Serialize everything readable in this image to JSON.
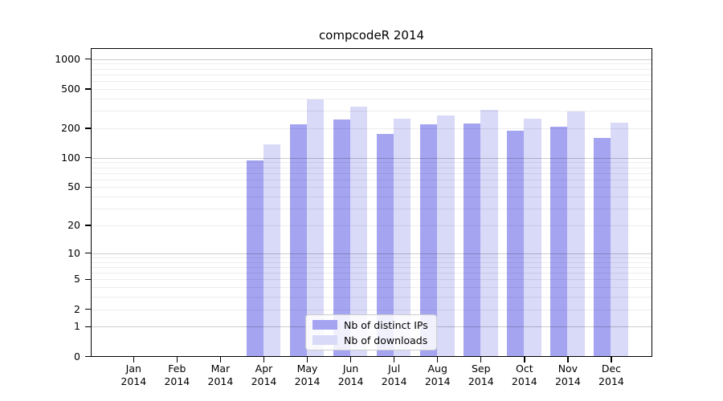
{
  "chart_data": {
    "type": "bar",
    "title": "compcodeR 2014",
    "categories": [
      "Jan 2014",
      "Feb 2014",
      "Mar 2014",
      "Apr 2014",
      "May 2014",
      "Jun 2014",
      "Jul 2014",
      "Aug 2014",
      "Sep 2014",
      "Oct 2014",
      "Nov 2014",
      "Dec 2014"
    ],
    "series": [
      {
        "name": "Nb of distinct IPs",
        "color": "#a4a4f1",
        "values": [
          0,
          0,
          0,
          95,
          220,
          247,
          175,
          220,
          224,
          187,
          208,
          160
        ]
      },
      {
        "name": "Nb of downloads",
        "color": "#d9d9f8",
        "values": [
          0,
          0,
          0,
          138,
          389,
          330,
          248,
          270,
          309,
          251,
          295,
          229
        ]
      }
    ],
    "yscale": "log10(value+1)",
    "y_ticks": [
      1000,
      500,
      200,
      100,
      50,
      20,
      10,
      5,
      2,
      1,
      0
    ],
    "ylim": [
      0,
      1310
    ],
    "grid": "on",
    "grid_major_at": [
      1,
      10,
      100,
      1000
    ],
    "grid_minor_at": "2-9 per decade",
    "legend_position": "inside-bottom-center"
  }
}
